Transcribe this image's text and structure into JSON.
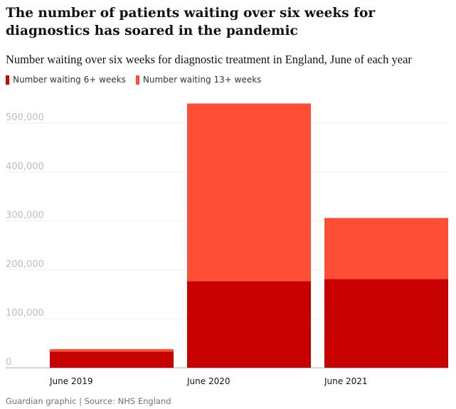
{
  "chart_data": {
    "type": "bar",
    "stacked": true,
    "title": "The number of patients waiting over six weeks for diagnostics has soared in the pandemic",
    "subtitle": "Number waiting over six weeks for diagnostic treatment in England, June of each year",
    "categories": [
      "June 2019",
      "June 2020",
      "June 2021"
    ],
    "series": [
      {
        "name": "Number waiting 6+ weeks",
        "color": "#c70000",
        "values": [
          33000,
          177000,
          181000
        ]
      },
      {
        "name": "Number waiting 13+ weeks",
        "color": "#ff4e36",
        "values": [
          5000,
          363000,
          125000
        ]
      }
    ],
    "y_ticks": [
      0,
      100000,
      200000,
      300000,
      400000,
      500000
    ],
    "y_tick_labels": [
      "0",
      "100,000",
      "200,000",
      "300,000",
      "400,000",
      "500,000"
    ],
    "ylim": [
      0,
      540000
    ],
    "grid": true,
    "legend_position": "top-left",
    "source": "Guardian graphic | Source: NHS England"
  }
}
